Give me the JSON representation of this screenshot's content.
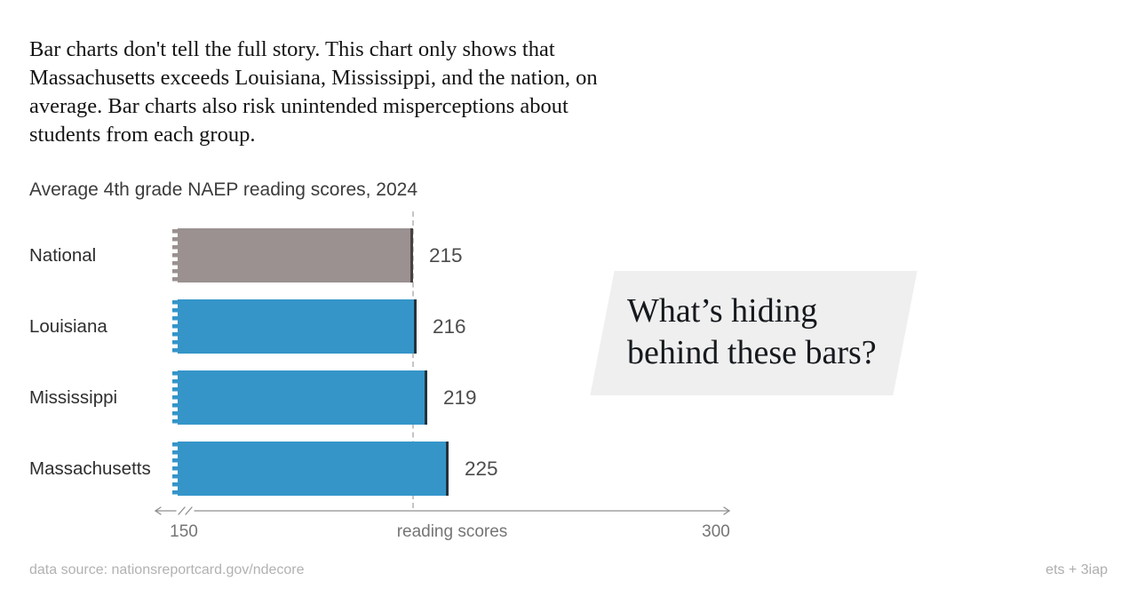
{
  "intro": {
    "lines": [
      "Bar charts don't tell the full story. This chart only shows that",
      "Massachusetts exceeds Louisiana, Mississippi, and the nation, on",
      "average. Bar charts also risk unintended misperceptions about",
      "students from each group."
    ]
  },
  "chart_data": {
    "type": "bar",
    "orientation": "horizontal",
    "title": "Average 4th grade NAEP reading scores, 2024",
    "categories": [
      "National",
      "Louisiana",
      "Mississippi",
      "Massachusetts"
    ],
    "values": [
      215,
      216,
      219,
      225
    ],
    "value_labels": [
      "215",
      "216",
      "219",
      "225"
    ],
    "bar_colors": [
      "#9A9190",
      "#3595C9",
      "#3595C9",
      "#3595C9"
    ],
    "bar_edge_colors": [
      "#474140",
      "#21333E",
      "#21333E",
      "#21333E"
    ],
    "xlabel": "reading scores",
    "x_ticks": [
      "150",
      "300"
    ],
    "xlim": [
      150,
      300
    ],
    "axis_break": true,
    "reference_line_value": 215,
    "grid": "off",
    "legend": "none"
  },
  "callout": {
    "lines": [
      "What’s hiding",
      "behind these bars?"
    ],
    "background_color": "#EFEFEF"
  },
  "footer": {
    "source": "data source: nationsreportcard.gov/ndecore",
    "credit": "ets + 3iap"
  }
}
